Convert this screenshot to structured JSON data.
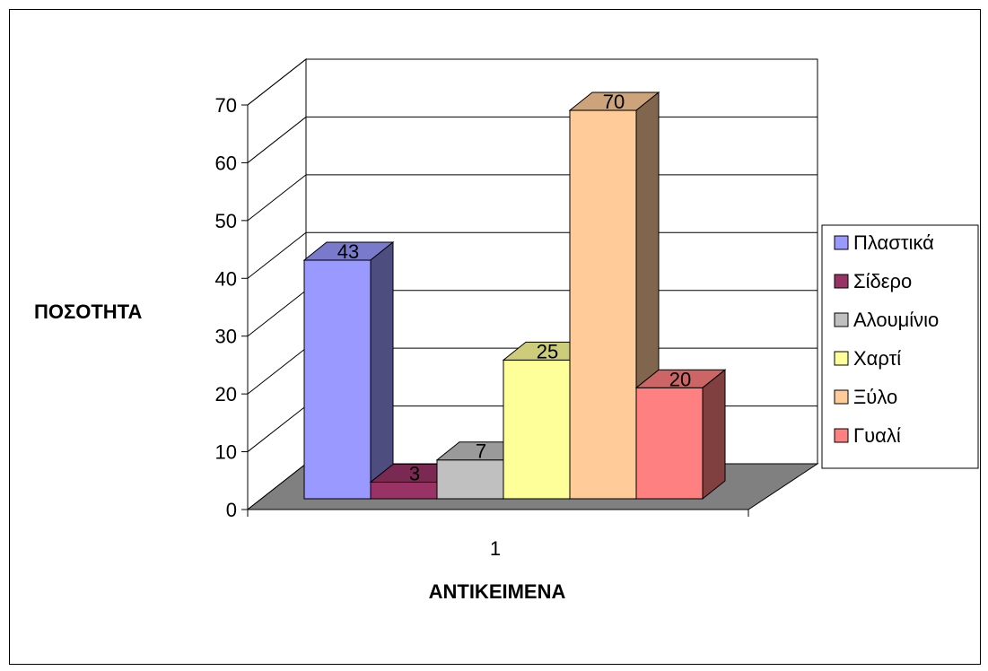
{
  "chart_data": {
    "type": "bar",
    "categories": [
      "1"
    ],
    "series": [
      {
        "name": "Πλαστικά",
        "values": [
          43
        ],
        "color": "#9999ff"
      },
      {
        "name": "Σίδερο",
        "values": [
          3
        ],
        "color": "#993366"
      },
      {
        "name": "Αλουμίνιο",
        "values": [
          7
        ],
        "color": "#c0c0c0"
      },
      {
        "name": "Χαρτί",
        "values": [
          25
        ],
        "color": "#ffff99"
      },
      {
        "name": "Ξύλο",
        "values": [
          70
        ],
        "color": "#ffcc99"
      },
      {
        "name": "Γυαλί",
        "values": [
          20
        ],
        "color": "#ff8080"
      }
    ],
    "title": "",
    "xlabel": "ΑΝΤΙΚΕΙΜΕΝΑ",
    "ylabel": "ΠΟΣΟΤΗΤΑ",
    "ylim": [
      0,
      70
    ],
    "yticks": [
      "0",
      "10",
      "20",
      "30",
      "40",
      "50",
      "60",
      "70"
    ],
    "style": "3d-clustered-column",
    "grid": true,
    "legend_position": "right",
    "data_labels": true,
    "floor_color": "#808080",
    "wall_color": "#ffffff"
  }
}
